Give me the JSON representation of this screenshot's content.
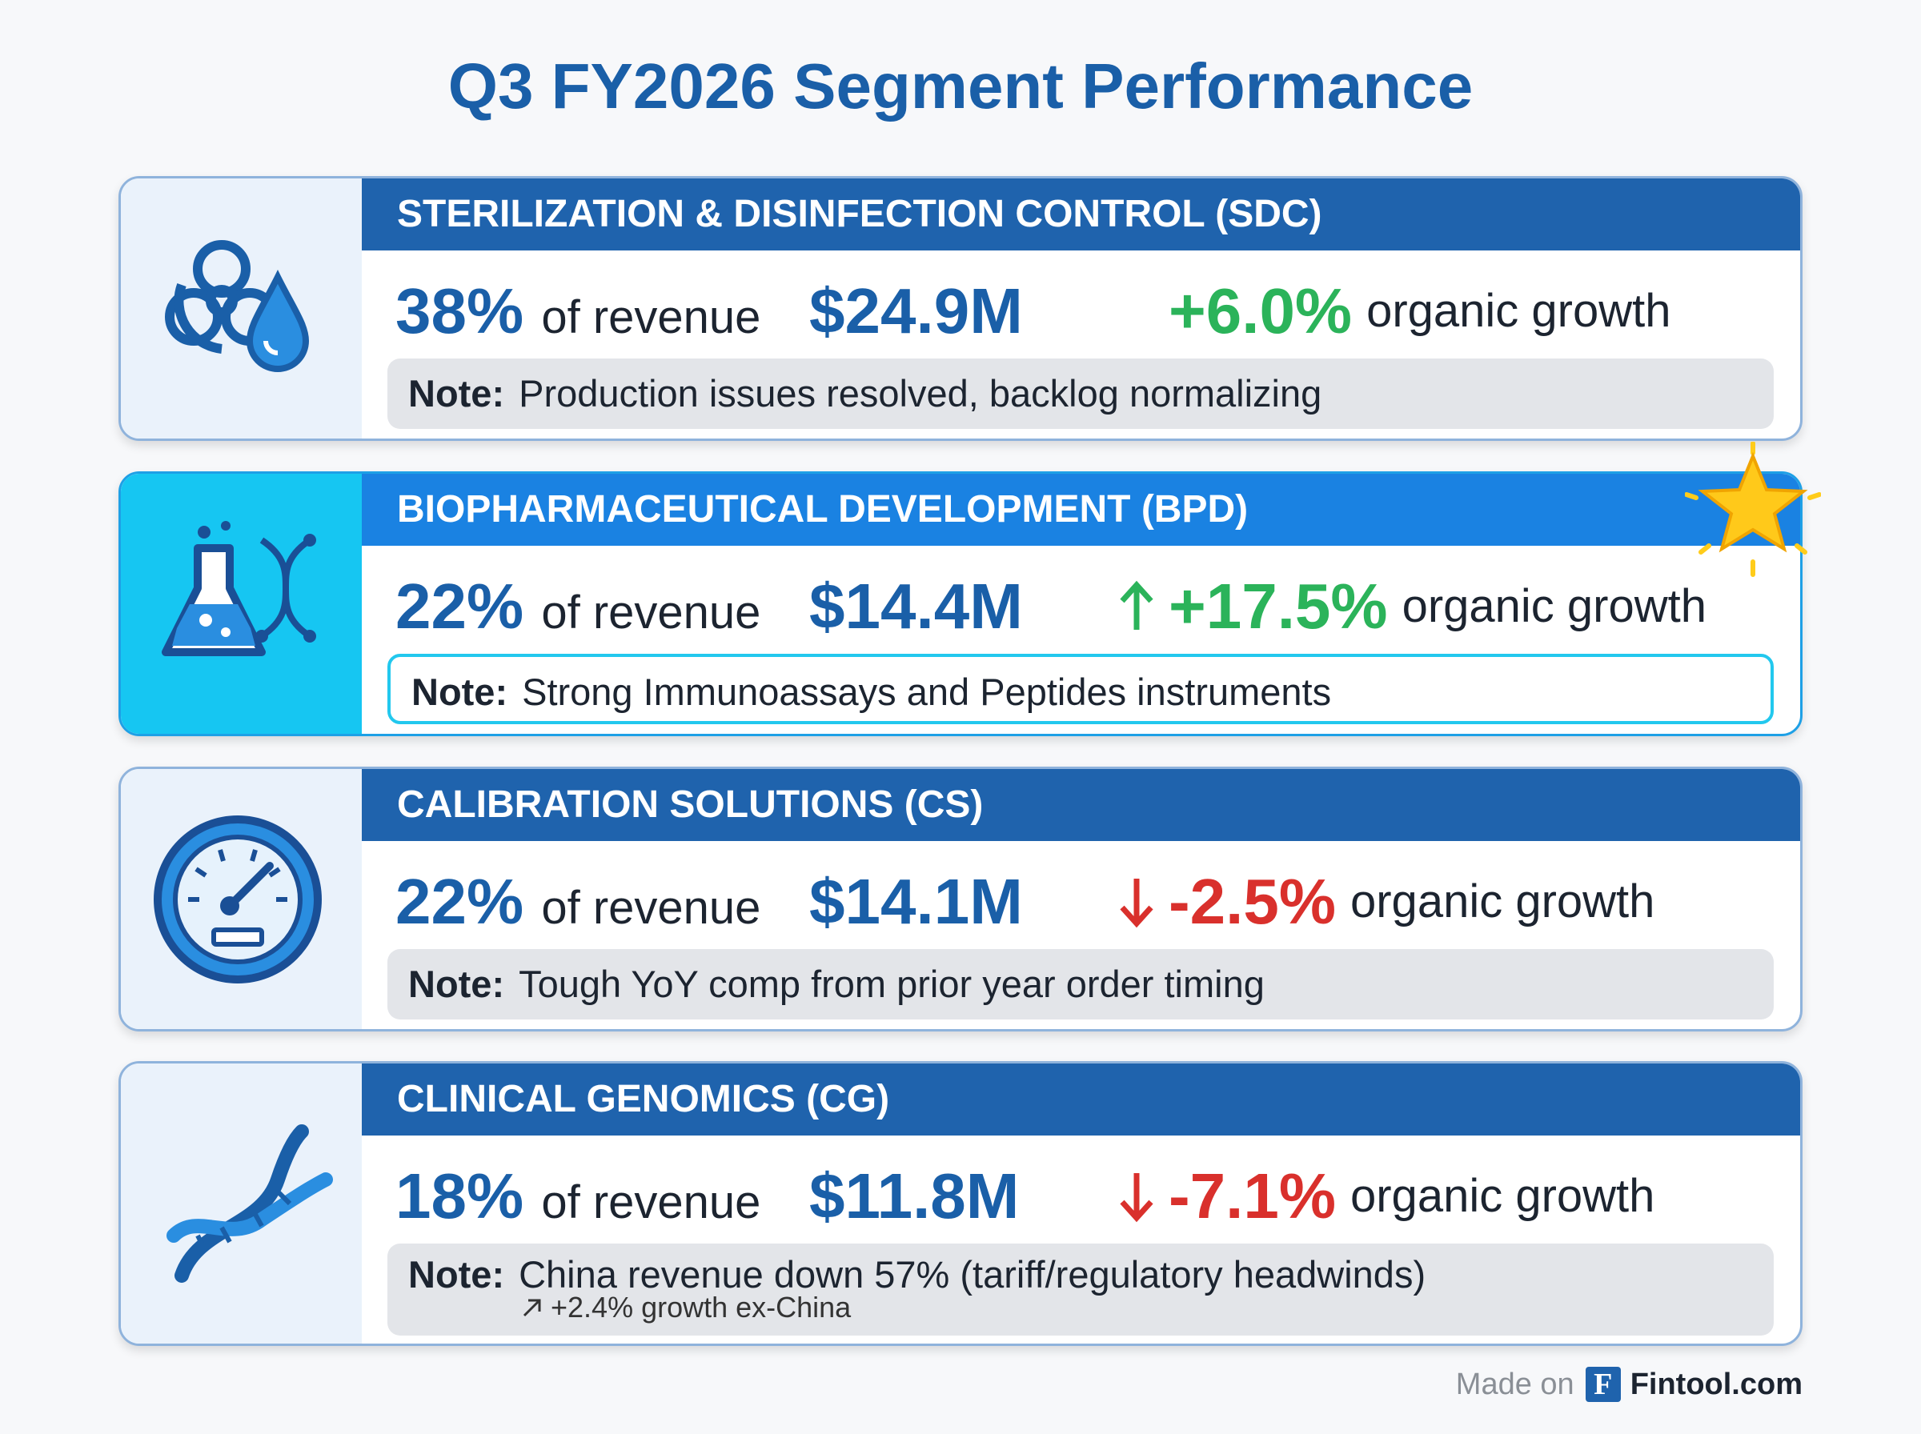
{
  "title": "Q3 FY2026 Segment Performance",
  "segments": [
    {
      "name": "STERILIZATION & DISINFECTION CONTROL (SDC)",
      "share": "38%",
      "share_label": "of revenue",
      "revenue": "$24.9M",
      "growth": "+6.0%",
      "growth_label": "organic growth",
      "growth_color": "#2bb35a",
      "arrow": null,
      "highlight": false,
      "icon": "biohazard",
      "note_label": "Note:",
      "note": "Production issues resolved, backlog normalizing"
    },
    {
      "name": "BIOPHARMACEUTICAL DEVELOPMENT (BPD)",
      "share": "22%",
      "share_label": "of revenue",
      "revenue": "$14.4M",
      "growth": "+17.5%",
      "growth_label": "organic growth",
      "growth_color": "#2bb35a",
      "arrow": "up",
      "highlight": true,
      "icon": "flask",
      "note_label": "Note:",
      "note": "Strong Immunoassays and Peptides instruments"
    },
    {
      "name": "CALIBRATION SOLUTIONS (CS)",
      "share": "22%",
      "share_label": "of revenue",
      "revenue": "$14.1M",
      "growth": "-2.5%",
      "growth_label": "organic growth",
      "growth_color": "#d9302c",
      "arrow": "down",
      "highlight": false,
      "icon": "gauge",
      "note_label": "Note:",
      "note": "Tough YoY comp from prior year order timing"
    },
    {
      "name": "CLINICAL GENOMICS (CG)",
      "share": "18%",
      "share_label": "of revenue",
      "revenue": "$11.8M",
      "growth": "-7.1%",
      "growth_label": "organic growth",
      "growth_color": "#d9302c",
      "arrow": "down",
      "highlight": false,
      "icon": "dna",
      "note_label": "Note:",
      "note": "China revenue down 57% (tariff/regulatory headwinds)",
      "subnote": "+2.4% growth ex-China"
    }
  ],
  "footer": {
    "prefix": "Made on",
    "logo": "F",
    "brand": "Fintool.com"
  }
}
